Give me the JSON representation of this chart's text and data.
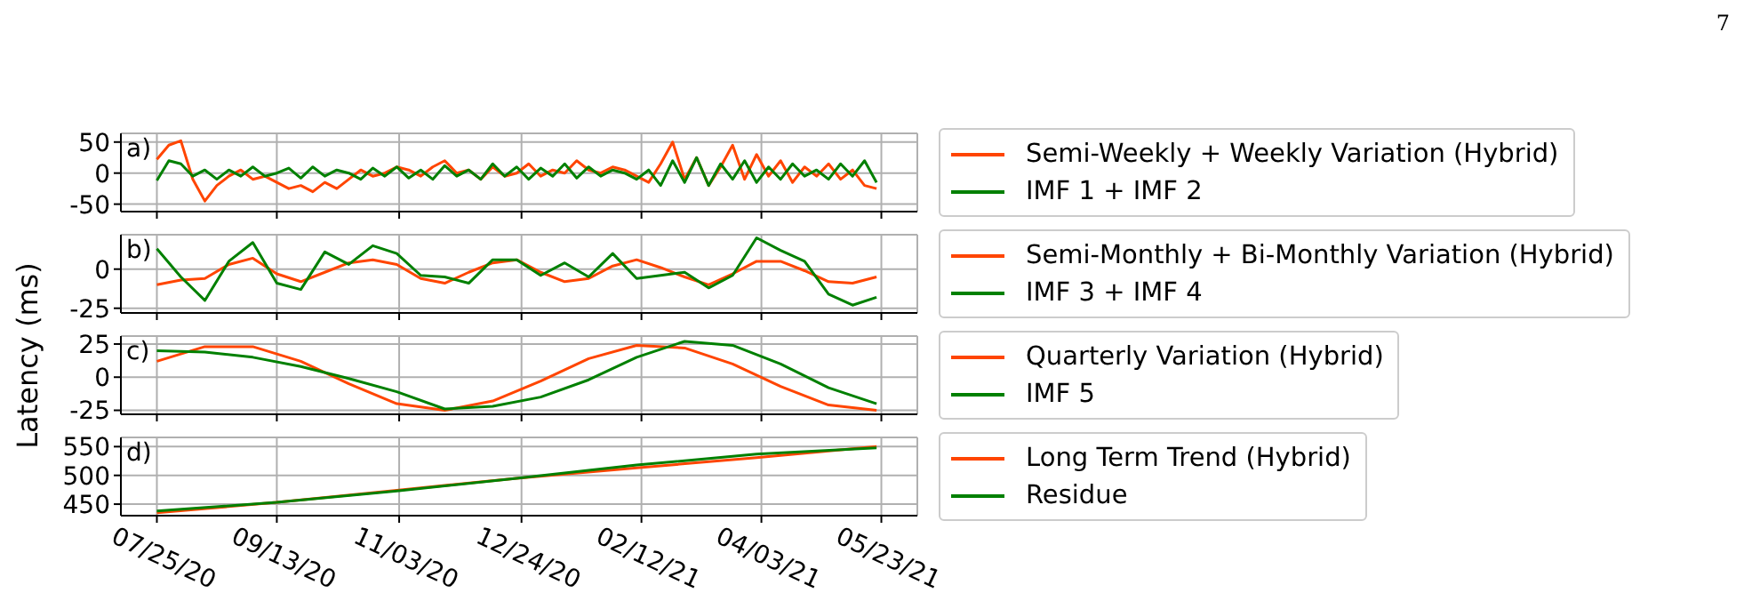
{
  "chart_data": [
    {
      "type": "line",
      "annotations": [
        "a)",
        "7"
      ],
      "grid": true,
      "legend": "right",
      "tick_labels": "y",
      "xlim": [
        "2020-07-10",
        "2021-06-07"
      ],
      "ylim": [
        -62,
        64
      ],
      "yticks": [
        -50,
        0,
        50
      ],
      "xticks": [
        {
          "value": "2020-07-25",
          "label": null
        },
        {
          "value": "2020-09-13",
          "label": null
        },
        {
          "value": "2020-11-03",
          "label": null
        },
        {
          "value": "2020-12-24",
          "label": null
        },
        {
          "value": "2021-02-12",
          "label": null
        },
        {
          "value": "2021-04-03",
          "label": null
        },
        {
          "value": "2021-05-23",
          "label": null
        }
      ],
      "x": [
        "2020-07-25",
        "2020-07-30",
        "2020-08-04",
        "2020-08-09",
        "2020-08-14",
        "2020-08-19",
        "2020-08-24",
        "2020-08-29",
        "2020-09-03",
        "2020-09-08",
        "2020-09-13",
        "2020-09-18",
        "2020-09-23",
        "2020-09-28",
        "2020-10-03",
        "2020-10-08",
        "2020-10-13",
        "2020-10-18",
        "2020-10-23",
        "2020-10-28",
        "2020-11-02",
        "2020-11-07",
        "2020-11-12",
        "2020-11-17",
        "2020-11-22",
        "2020-11-27",
        "2020-12-02",
        "2020-12-07",
        "2020-12-12",
        "2020-12-17",
        "2020-12-22",
        "2020-12-27",
        "2021-01-01",
        "2021-01-06",
        "2021-01-11",
        "2021-01-16",
        "2021-01-21",
        "2021-01-26",
        "2021-01-31",
        "2021-02-05",
        "2021-02-10",
        "2021-02-15",
        "2021-02-20",
        "2021-02-25",
        "2021-03-02",
        "2021-03-07",
        "2021-03-12",
        "2021-03-17",
        "2021-03-22",
        "2021-03-27",
        "2021-04-01",
        "2021-04-06",
        "2021-04-11",
        "2021-04-16",
        "2021-04-21",
        "2021-04-26",
        "2021-05-01",
        "2021-05-06",
        "2021-05-11",
        "2021-05-16",
        "2021-05-21"
      ],
      "series": [
        {
          "name": "Semi-Weekly + Weekly Variation (Hybrid)",
          "color": "#ff4500",
          "values": [
            22,
            45,
            52,
            -10,
            -45,
            -20,
            -5,
            5,
            -10,
            -5,
            -15,
            -25,
            -20,
            -30,
            -15,
            -25,
            -10,
            5,
            -5,
            0,
            10,
            5,
            -5,
            10,
            20,
            0,
            5,
            -10,
            10,
            -5,
            0,
            15,
            -5,
            5,
            0,
            20,
            5,
            0,
            10,
            5,
            -5,
            -15,
            15,
            50,
            -10,
            25,
            -20,
            10,
            45,
            -10,
            30,
            -5,
            20,
            -15,
            10,
            -5,
            15,
            -10,
            5,
            -20,
            -25
          ]
        },
        {
          "name": "IMF 1 + IMF 2",
          "color": "#008000",
          "values": [
            -12,
            20,
            15,
            -5,
            5,
            -10,
            5,
            -5,
            10,
            -5,
            0,
            8,
            -8,
            10,
            -5,
            5,
            0,
            -10,
            8,
            -5,
            10,
            -8,
            5,
            -10,
            12,
            -5,
            5,
            -10,
            15,
            -5,
            10,
            -10,
            8,
            -5,
            15,
            -8,
            10,
            -5,
            5,
            0,
            -10,
            5,
            -20,
            20,
            -15,
            25,
            -20,
            15,
            -10,
            20,
            -15,
            10,
            -10,
            15,
            -5,
            5,
            -10,
            15,
            -5,
            20,
            -15
          ]
        }
      ]
    },
    {
      "type": "line",
      "annotations": [
        "b)"
      ],
      "grid": true,
      "legend": "right",
      "tick_labels": "y",
      "xlim": [
        "2020-07-10",
        "2021-06-07"
      ],
      "ylim": [
        -28,
        22
      ],
      "yticks": [
        -25,
        0
      ],
      "xticks": [
        {
          "value": "2020-07-25",
          "label": null
        },
        {
          "value": "2020-09-13",
          "label": null
        },
        {
          "value": "2020-11-03",
          "label": null
        },
        {
          "value": "2020-12-24",
          "label": null
        },
        {
          "value": "2021-02-12",
          "label": null
        },
        {
          "value": "2021-04-03",
          "label": null
        },
        {
          "value": "2021-05-23",
          "label": null
        }
      ],
      "x": [
        "2020-07-25",
        "2020-08-04",
        "2020-08-14",
        "2020-08-24",
        "2020-09-03",
        "2020-09-13",
        "2020-09-23",
        "2020-10-03",
        "2020-10-13",
        "2020-10-23",
        "2020-11-02",
        "2020-11-12",
        "2020-11-22",
        "2020-12-02",
        "2020-12-12",
        "2020-12-22",
        "2021-01-01",
        "2021-01-11",
        "2021-01-21",
        "2021-01-31",
        "2021-02-10",
        "2021-02-20",
        "2021-03-02",
        "2021-03-12",
        "2021-03-22",
        "2021-04-01",
        "2021-04-11",
        "2021-04-21",
        "2021-05-01",
        "2021-05-11",
        "2021-05-21"
      ],
      "series": [
        {
          "name": "Semi-Monthly + Bi-Monthly Variation (Hybrid)",
          "color": "#ff4500",
          "values": [
            -10,
            -7,
            -6,
            3,
            7,
            -3,
            -8,
            -2,
            4,
            6,
            3,
            -6,
            -9,
            -2,
            4,
            6,
            -2,
            -8,
            -6,
            2,
            6,
            1,
            -5,
            -10,
            -3,
            5,
            5,
            -1,
            -8,
            -9,
            -5
          ]
        },
        {
          "name": "IMF 3 + IMF 4",
          "color": "#008000",
          "values": [
            13,
            -5,
            -20,
            5,
            17,
            -9,
            -13,
            11,
            3,
            15,
            10,
            -4,
            -5,
            -9,
            6,
            6,
            -4,
            4,
            -5,
            10,
            -6,
            -4,
            -2,
            -12,
            -4,
            20,
            12,
            5,
            -16,
            -23,
            -18
          ]
        }
      ]
    },
    {
      "type": "line",
      "annotations": [
        "c)"
      ],
      "ylabel": "Latency (ms)",
      "grid": true,
      "legend": "right",
      "tick_labels": "y",
      "xlim": [
        "2020-07-10",
        "2021-06-07"
      ],
      "ylim": [
        -28,
        31
      ],
      "yticks": [
        -25,
        0,
        25
      ],
      "xticks": [
        {
          "value": "2020-07-25",
          "label": null
        },
        {
          "value": "2020-09-13",
          "label": null
        },
        {
          "value": "2020-11-03",
          "label": null
        },
        {
          "value": "2020-12-24",
          "label": null
        },
        {
          "value": "2021-02-12",
          "label": null
        },
        {
          "value": "2021-04-03",
          "label": null
        },
        {
          "value": "2021-05-23",
          "label": null
        }
      ],
      "x": [
        "2020-07-25",
        "2020-08-14",
        "2020-09-03",
        "2020-09-23",
        "2020-10-13",
        "2020-11-02",
        "2020-11-22",
        "2020-12-12",
        "2021-01-01",
        "2021-01-21",
        "2021-02-10",
        "2021-03-02",
        "2021-03-22",
        "2021-04-11",
        "2021-05-01",
        "2021-05-21"
      ],
      "series": [
        {
          "name": "Quarterly Variation (Hybrid)",
          "color": "#ff4500",
          "values": [
            12,
            23,
            23,
            12,
            -5,
            -20,
            -25,
            -18,
            -3,
            14,
            24,
            22,
            10,
            -7,
            -21,
            -25
          ]
        },
        {
          "name": "IMF 5",
          "color": "#008000",
          "values": [
            20,
            19,
            15,
            8,
            -1,
            -11,
            -24,
            -22,
            -15,
            -2,
            15,
            27,
            24,
            10,
            -8,
            -20
          ]
        }
      ]
    },
    {
      "type": "line",
      "annotations": [
        "d)"
      ],
      "grid": true,
      "legend": "right",
      "xlim": [
        "2020-07-10",
        "2021-06-07"
      ],
      "ylim": [
        430,
        566
      ],
      "yticks": [
        450,
        500,
        550
      ],
      "xticks": [
        {
          "value": "2020-07-25",
          "label": "07/25/20"
        },
        {
          "value": "2020-09-13",
          "label": "09/13/20"
        },
        {
          "value": "2020-11-03",
          "label": "11/03/20"
        },
        {
          "value": "2020-12-24",
          "label": "12/24/20"
        },
        {
          "value": "2021-02-12",
          "label": "02/12/21"
        },
        {
          "value": "2021-04-03",
          "label": "04/03/21"
        },
        {
          "value": "2021-05-23",
          "label": "05/23/21"
        }
      ],
      "x": [
        "2020-07-25",
        "2020-09-13",
        "2020-11-02",
        "2020-12-22",
        "2021-02-10",
        "2021-04-01",
        "2021-05-21"
      ],
      "series": [
        {
          "name": "Long Term Trend (Hybrid)",
          "color": "#ff4500",
          "values": [
            435,
            453,
            474,
            495,
            513,
            531,
            550
          ]
        },
        {
          "name": "Residue",
          "color": "#008000",
          "values": [
            438,
            453,
            473,
            495,
            518,
            537,
            548
          ]
        }
      ]
    }
  ]
}
